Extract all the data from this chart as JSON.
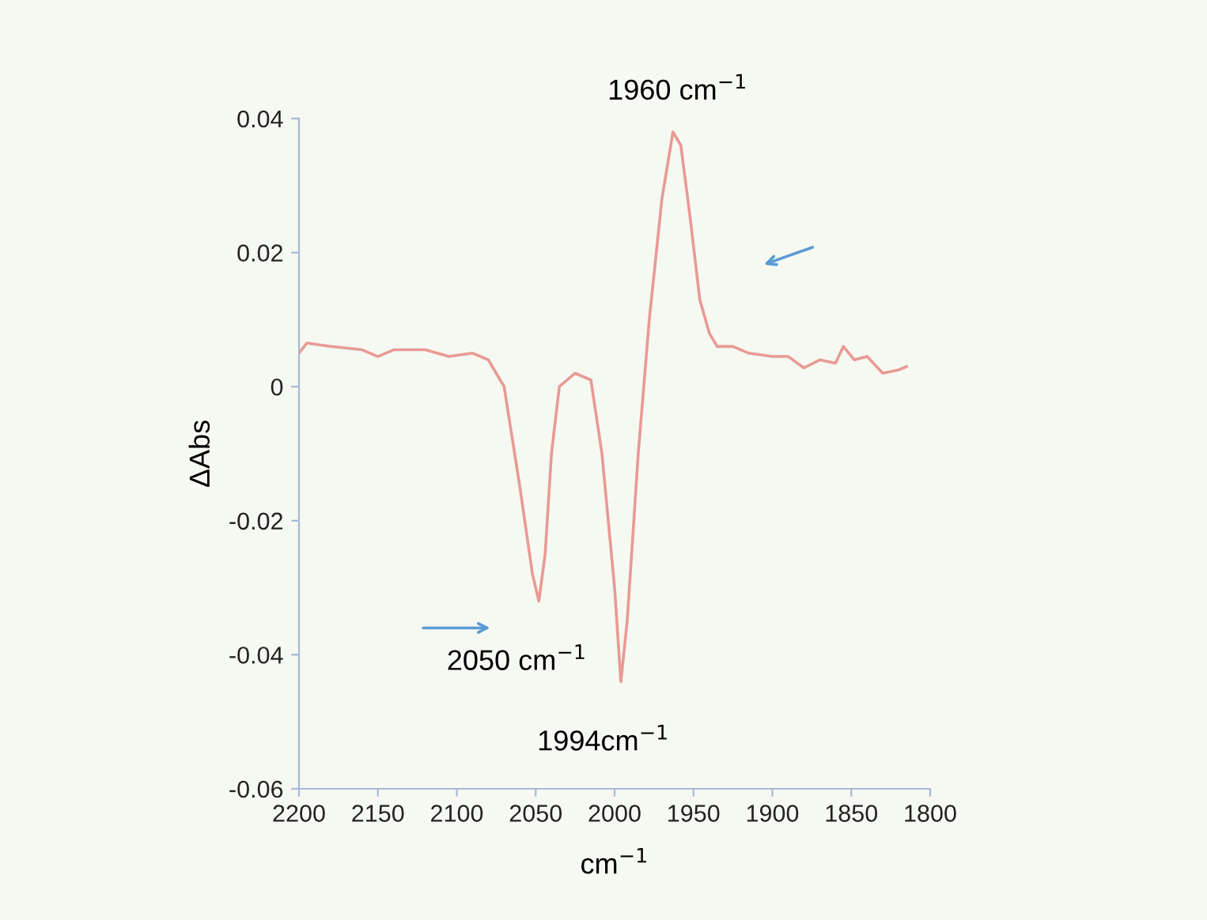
{
  "chart_data": {
    "type": "line",
    "xlabel": "cm$^{−1}$",
    "ylabel": "ΔAbs",
    "x": [
      2200,
      2195,
      2180,
      2160,
      2150,
      2140,
      2120,
      2105,
      2090,
      2080,
      2070,
      2060,
      2052,
      2048,
      2044,
      2040,
      2035,
      2025,
      2015,
      2008,
      2000,
      1996,
      1992,
      1985,
      1978,
      1970,
      1963,
      1958,
      1952,
      1946,
      1940,
      1935,
      1925,
      1915,
      1900,
      1890,
      1880,
      1870,
      1860,
      1855,
      1848,
      1840,
      1830,
      1820,
      1815
    ],
    "series": [
      {
        "color": "#e89a94",
        "values": [
          0.005,
          0.0065,
          0.006,
          0.0055,
          0.0045,
          0.0055,
          0.0055,
          0.0045,
          0.005,
          0.004,
          0,
          -0.015,
          -0.028,
          -0.032,
          -0.025,
          -0.01,
          0,
          0.002,
          0.001,
          -0.01,
          -0.03,
          -0.044,
          -0.035,
          -0.01,
          0.01,
          0.028,
          0.038,
          0.036,
          0.025,
          0.013,
          0.008,
          0.006,
          0.006,
          0.005,
          0.0045,
          0.0045,
          0.0028,
          0.004,
          0.0035,
          0.006,
          0.004,
          0.0045,
          0.002,
          0.0025,
          0.003
        ]
      }
    ],
    "xlim": [
      2200,
      1800
    ],
    "xticks": [
      2200,
      2150,
      2100,
      2050,
      2000,
      1950,
      1900,
      1850,
      1800
    ],
    "ylim": [
      -0.06,
      0.04
    ],
    "yticks": [
      {
        "value": -0.06,
        "label": "-0.06"
      },
      {
        "value": -0.04,
        "label": "-0.04"
      },
      {
        "value": -0.02,
        "label": "-0.02"
      },
      {
        "value": 0,
        "label": "0"
      },
      {
        "value": 0.02,
        "label": "0.02"
      },
      {
        "value": 0.04,
        "label": "0.04"
      }
    ],
    "grid": false,
    "line_style": "solid",
    "marker": "none",
    "annotations": [
      {
        "text": "1960 cm$^{−1}$",
        "x": 1960,
        "y": 0.038
      },
      {
        "text": "2050 cm$^{−1}$",
        "x": 2048,
        "y": -0.032
      },
      {
        "text": "1994cm$^{−1}$",
        "x": 1996,
        "y": -0.044
      }
    ]
  }
}
